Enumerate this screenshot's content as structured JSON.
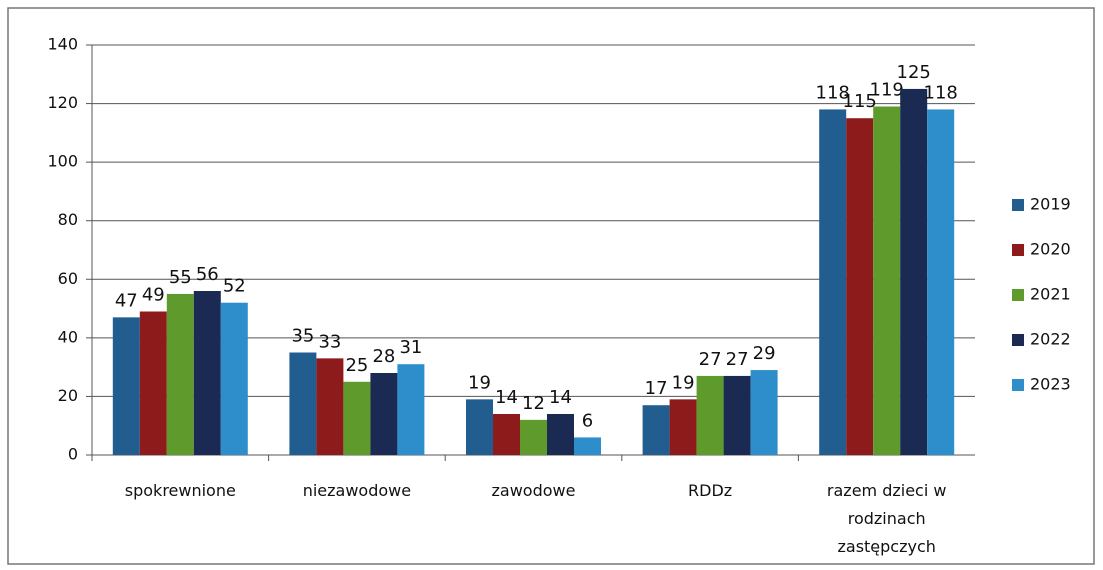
{
  "chart_data": {
    "type": "bar",
    "categories": [
      "spokrewnione",
      "niezawodowe",
      "zawodowe",
      "RDDz",
      "razem dzieci w rodzinach zastępczych"
    ],
    "series": [
      {
        "name": "2019",
        "color": "#215d8f",
        "values": [
          47,
          35,
          19,
          17,
          118
        ]
      },
      {
        "name": "2020",
        "color": "#8e1b1b",
        "values": [
          49,
          33,
          14,
          19,
          115
        ]
      },
      {
        "name": "2021",
        "color": "#5f9a2d",
        "values": [
          55,
          25,
          12,
          27,
          119
        ]
      },
      {
        "name": "2022",
        "color": "#1b2a52",
        "values": [
          56,
          28,
          14,
          27,
          125
        ]
      },
      {
        "name": "2023",
        "color": "#2e8ecb",
        "values": [
          52,
          31,
          6,
          29,
          118
        ]
      }
    ],
    "ylim": [
      0,
      140
    ],
    "yticks": [
      0,
      20,
      40,
      60,
      80,
      100,
      120,
      140
    ],
    "grid": true,
    "legend": "right"
  }
}
